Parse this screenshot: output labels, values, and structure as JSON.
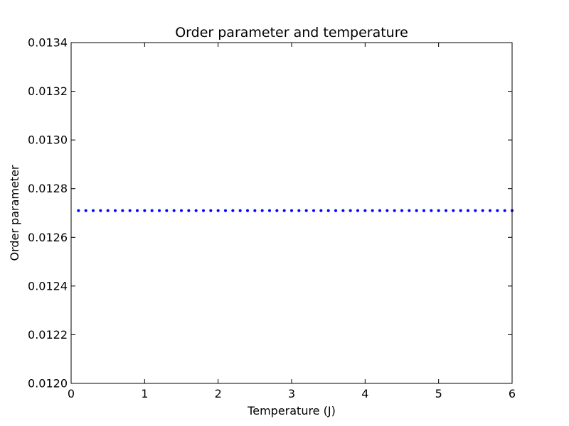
{
  "chart_data": {
    "type": "scatter",
    "title": "Order parameter and temperature",
    "xlabel": "Temperature (J)",
    "ylabel": "Order parameter",
    "xlim": [
      0,
      6
    ],
    "ylim": [
      0.012,
      0.0134
    ],
    "xticks": [
      0,
      1,
      2,
      3,
      4,
      5,
      6
    ],
    "xtick_labels": [
      "0",
      "1",
      "2",
      "3",
      "4",
      "5",
      "6"
    ],
    "yticks": [
      0.012,
      0.0122,
      0.0124,
      0.0126,
      0.0128,
      0.013,
      0.0132,
      0.0134
    ],
    "ytick_labels": [
      "0.0120",
      "0.0122",
      "0.0124",
      "0.0126",
      "0.0128",
      "0.0130",
      "0.0132",
      "0.0134"
    ],
    "grid": false,
    "series": [
      {
        "color": "#0000ff",
        "marker": "dot",
        "x": [
          0.1,
          0.2,
          0.3,
          0.4,
          0.5,
          0.6,
          0.7,
          0.8,
          0.9,
          1.0,
          1.1,
          1.2,
          1.3,
          1.4,
          1.5,
          1.6,
          1.7,
          1.8,
          1.9,
          2.0,
          2.1,
          2.2,
          2.3,
          2.4,
          2.5,
          2.6,
          2.7,
          2.8,
          2.9,
          3.0,
          3.1,
          3.2,
          3.3,
          3.4,
          3.5,
          3.6,
          3.7,
          3.8,
          3.9,
          4.0,
          4.1,
          4.2,
          4.3,
          4.4,
          4.5,
          4.6,
          4.7,
          4.8,
          4.9,
          5.0,
          5.1,
          5.2,
          5.3,
          5.4,
          5.5,
          5.6,
          5.7,
          5.8,
          5.9,
          6.0
        ],
        "y": [
          0.01271,
          0.01271,
          0.01271,
          0.01271,
          0.01271,
          0.01271,
          0.01271,
          0.01271,
          0.01271,
          0.01271,
          0.01271,
          0.01271,
          0.01271,
          0.01271,
          0.01271,
          0.01271,
          0.01271,
          0.01271,
          0.01271,
          0.01271,
          0.01271,
          0.01271,
          0.01271,
          0.01271,
          0.01271,
          0.01271,
          0.01271,
          0.01271,
          0.01271,
          0.01271,
          0.01271,
          0.01271,
          0.01271,
          0.01271,
          0.01271,
          0.01271,
          0.01271,
          0.01271,
          0.01271,
          0.01271,
          0.01271,
          0.01271,
          0.01271,
          0.01271,
          0.01271,
          0.01271,
          0.01271,
          0.01271,
          0.01271,
          0.01271,
          0.01271,
          0.01271,
          0.01271,
          0.01271,
          0.01271,
          0.01271,
          0.01271,
          0.01271,
          0.01271,
          0.01271
        ]
      }
    ]
  }
}
